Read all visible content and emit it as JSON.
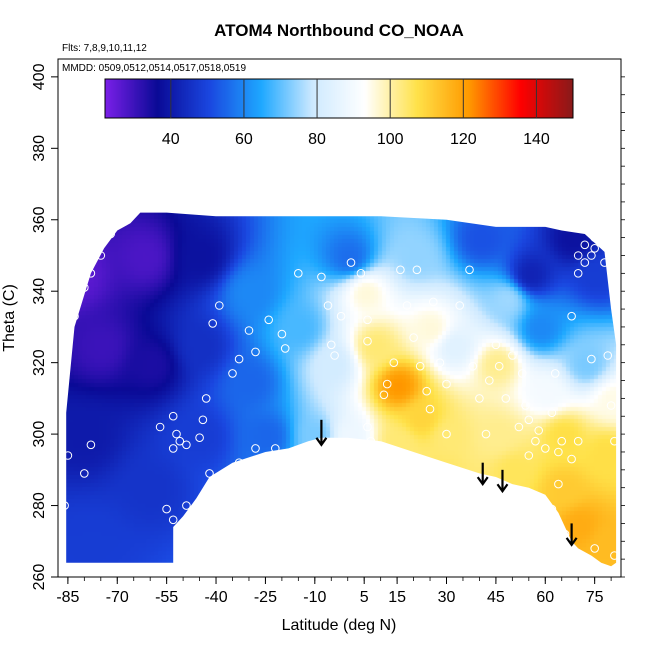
{
  "chart_data": {
    "type": "heatmap",
    "title": "ATOM4 Northbound CO_NOAA",
    "annotations": [
      "Flts: 7,8,9,10,11,12",
      "MMDD: 0509,0512,0514,0517,0518,0519"
    ],
    "xlabel": "Latitude (deg N)",
    "ylabel": "Theta (C)",
    "xlim": [
      -88,
      83
    ],
    "ylim": [
      260,
      405
    ],
    "x_ticks": [
      -85,
      -70,
      -55,
      -40,
      -25,
      -10,
      5,
      15,
      30,
      45,
      60,
      75
    ],
    "x_tick_labels": [
      "-85",
      "-70",
      "-55",
      "-40",
      "-25",
      "-10",
      "5",
      "15",
      "30",
      "45",
      "60",
      "75"
    ],
    "y_ticks": [
      260,
      280,
      300,
      320,
      340,
      360,
      380,
      400
    ],
    "y_tick_labels": [
      "260",
      "280",
      "300",
      "320",
      "340",
      "360",
      "380",
      "400"
    ],
    "colorbar": {
      "range": [
        22,
        150
      ],
      "ticks": [
        40,
        60,
        80,
        100,
        120,
        140
      ],
      "tick_labels": [
        "40",
        "60",
        "80",
        "100",
        "120",
        "140"
      ],
      "colors": [
        "#7a1fe8",
        "#0a0a96",
        "#1a47e0",
        "#1ea8ff",
        "#cfeaff",
        "#ffffff",
        "#ffe24a",
        "#ff9a00",
        "#ff0000",
        "#8a1a1a"
      ]
    },
    "field_anchors": [
      {
        "x": -83,
        "y": 345,
        "v": 26
      },
      {
        "x": -75,
        "y": 325,
        "v": 30
      },
      {
        "x": -62,
        "y": 350,
        "v": 28
      },
      {
        "x": -60,
        "y": 320,
        "v": 34
      },
      {
        "x": -80,
        "y": 300,
        "v": 40
      },
      {
        "x": -78,
        "y": 270,
        "v": 48
      },
      {
        "x": -60,
        "y": 285,
        "v": 46
      },
      {
        "x": -45,
        "y": 300,
        "v": 48
      },
      {
        "x": -45,
        "y": 325,
        "v": 45
      },
      {
        "x": -45,
        "y": 350,
        "v": 38
      },
      {
        "x": -30,
        "y": 315,
        "v": 55
      },
      {
        "x": -30,
        "y": 340,
        "v": 60
      },
      {
        "x": -25,
        "y": 300,
        "v": 55
      },
      {
        "x": -15,
        "y": 330,
        "v": 68
      },
      {
        "x": -10,
        "y": 300,
        "v": 72
      },
      {
        "x": -5,
        "y": 320,
        "v": 80
      },
      {
        "x": 0,
        "y": 300,
        "v": 88
      },
      {
        "x": 0,
        "y": 350,
        "v": 56
      },
      {
        "x": 5,
        "y": 340,
        "v": 96
      },
      {
        "x": 8,
        "y": 325,
        "v": 104
      },
      {
        "x": 15,
        "y": 314,
        "v": 122
      },
      {
        "x": 22,
        "y": 305,
        "v": 110
      },
      {
        "x": 15,
        "y": 298,
        "v": 104
      },
      {
        "x": 25,
        "y": 330,
        "v": 96
      },
      {
        "x": 20,
        "y": 350,
        "v": 74
      },
      {
        "x": 32,
        "y": 325,
        "v": 84
      },
      {
        "x": 30,
        "y": 300,
        "v": 104
      },
      {
        "x": 28,
        "y": 290,
        "v": 105
      },
      {
        "x": 45,
        "y": 320,
        "v": 102
      },
      {
        "x": 48,
        "y": 338,
        "v": 75
      },
      {
        "x": 45,
        "y": 300,
        "v": 102
      },
      {
        "x": 50,
        "y": 290,
        "v": 106
      },
      {
        "x": 40,
        "y": 355,
        "v": 52
      },
      {
        "x": 55,
        "y": 345,
        "v": 42
      },
      {
        "x": 58,
        "y": 330,
        "v": 60
      },
      {
        "x": 60,
        "y": 312,
        "v": 90
      },
      {
        "x": 65,
        "y": 300,
        "v": 108
      },
      {
        "x": 65,
        "y": 285,
        "v": 112
      },
      {
        "x": 70,
        "y": 275,
        "v": 118
      },
      {
        "x": 78,
        "y": 270,
        "v": 115
      },
      {
        "x": 78,
        "y": 295,
        "v": 108
      },
      {
        "x": 72,
        "y": 320,
        "v": 72
      },
      {
        "x": 75,
        "y": 345,
        "v": 48
      },
      {
        "x": 68,
        "y": 355,
        "v": 38
      },
      {
        "x": 80,
        "y": 310,
        "v": 95
      }
    ],
    "coverage_outline": [
      [
        -85.5,
        264
      ],
      [
        -85.5,
        306
      ],
      [
        -83,
        330
      ],
      [
        -78,
        345
      ],
      [
        -74,
        352
      ],
      [
        -70,
        357
      ],
      [
        -66,
        359
      ],
      [
        -63,
        362
      ],
      [
        -55,
        362
      ],
      [
        -40,
        361
      ],
      [
        -10,
        361
      ],
      [
        10,
        361
      ],
      [
        30,
        360
      ],
      [
        45,
        358
      ],
      [
        60,
        358
      ],
      [
        65,
        357
      ],
      [
        72,
        356
      ],
      [
        78,
        351
      ],
      [
        80,
        335
      ],
      [
        81.5,
        325
      ],
      [
        81.5,
        264
      ],
      [
        80,
        263
      ],
      [
        77,
        264
      ],
      [
        74,
        266
      ],
      [
        70,
        268
      ],
      [
        68,
        270
      ],
      [
        66,
        274
      ],
      [
        64,
        278
      ],
      [
        60,
        283
      ],
      [
        55,
        285
      ],
      [
        50,
        286
      ],
      [
        45,
        288
      ],
      [
        40,
        289
      ],
      [
        30,
        292
      ],
      [
        20,
        295
      ],
      [
        10,
        298
      ],
      [
        0,
        299
      ],
      [
        -8,
        299
      ],
      [
        -12,
        298
      ],
      [
        -18,
        296
      ],
      [
        -25,
        295
      ],
      [
        -35,
        292
      ],
      [
        -42,
        288
      ],
      [
        -46,
        282
      ],
      [
        -50,
        277
      ],
      [
        -53,
        274
      ],
      [
        -53,
        264
      ]
    ],
    "sample_points": [
      [
        -86,
        280
      ],
      [
        -85,
        294
      ],
      [
        -80,
        289
      ],
      [
        -78,
        297
      ],
      [
        -85,
        329
      ],
      [
        -83,
        333
      ],
      [
        -80,
        341
      ],
      [
        -78,
        345
      ],
      [
        -75,
        350
      ],
      [
        -72,
        356
      ],
      [
        -70,
        359
      ],
      [
        -67,
        361
      ],
      [
        -57,
        302
      ],
      [
        -53,
        305
      ],
      [
        -52,
        300
      ],
      [
        -51,
        298
      ],
      [
        -49,
        297
      ],
      [
        -53,
        296
      ],
      [
        -55,
        279
      ],
      [
        -53,
        276
      ],
      [
        -49,
        280
      ],
      [
        -45,
        299
      ],
      [
        -44,
        304
      ],
      [
        -43,
        310
      ],
      [
        -42,
        289
      ],
      [
        -41,
        331
      ],
      [
        -39,
        336
      ],
      [
        -35,
        317
      ],
      [
        -33,
        321
      ],
      [
        -33,
        292
      ],
      [
        -30,
        329
      ],
      [
        -28,
        323
      ],
      [
        -28,
        296
      ],
      [
        -24,
        332
      ],
      [
        -22,
        296
      ],
      [
        -20,
        328
      ],
      [
        -19,
        324
      ],
      [
        -15,
        345
      ],
      [
        -14,
        288
      ],
      [
        -8,
        344
      ],
      [
        -6,
        336
      ],
      [
        -5,
        325
      ],
      [
        -4,
        322
      ],
      [
        -2,
        333
      ],
      [
        1,
        348
      ],
      [
        4,
        345
      ],
      [
        6,
        332
      ],
      [
        6,
        326
      ],
      [
        6,
        302
      ],
      [
        7,
        298
      ],
      [
        8,
        297
      ],
      [
        11,
        311
      ],
      [
        12,
        314
      ],
      [
        14,
        320
      ],
      [
        16,
        346
      ],
      [
        18,
        336
      ],
      [
        20,
        327
      ],
      [
        21,
        346
      ],
      [
        22,
        319
      ],
      [
        24,
        312
      ],
      [
        25,
        307
      ],
      [
        26,
        337
      ],
      [
        28,
        320
      ],
      [
        30,
        314
      ],
      [
        30,
        300
      ],
      [
        34,
        336
      ],
      [
        37,
        346
      ],
      [
        38,
        319
      ],
      [
        40,
        310
      ],
      [
        42,
        300
      ],
      [
        43,
        315
      ],
      [
        45,
        325
      ],
      [
        46,
        319
      ],
      [
        48,
        310
      ],
      [
        50,
        322
      ],
      [
        53,
        317
      ],
      [
        52,
        302
      ],
      [
        54,
        308
      ],
      [
        55,
        304
      ],
      [
        55,
        294
      ],
      [
        57,
        298
      ],
      [
        58,
        301
      ],
      [
        60,
        296
      ],
      [
        62,
        306
      ],
      [
        63,
        317
      ],
      [
        64,
        295
      ],
      [
        65,
        298
      ],
      [
        64,
        286
      ],
      [
        62,
        279
      ],
      [
        63,
        275
      ],
      [
        66,
        272
      ],
      [
        68,
        293
      ],
      [
        70,
        298
      ],
      [
        70,
        345
      ],
      [
        72,
        348
      ],
      [
        74,
        350
      ],
      [
        75,
        355
      ],
      [
        75,
        352
      ],
      [
        78,
        348
      ],
      [
        79,
        322
      ],
      [
        80,
        308
      ],
      [
        81,
        298
      ],
      [
        81,
        266
      ],
      [
        75,
        268
      ],
      [
        74,
        321
      ],
      [
        68,
        333
      ],
      [
        70,
        350
      ],
      [
        72,
        353
      ]
    ],
    "arrows": [
      {
        "x": -8,
        "y_top": 304,
        "y_bottom": 297
      },
      {
        "x": 41,
        "y_top": 292,
        "y_bottom": 286
      },
      {
        "x": 47,
        "y_top": 290,
        "y_bottom": 284
      },
      {
        "x": 68,
        "y_top": 275,
        "y_bottom": 269
      }
    ]
  }
}
